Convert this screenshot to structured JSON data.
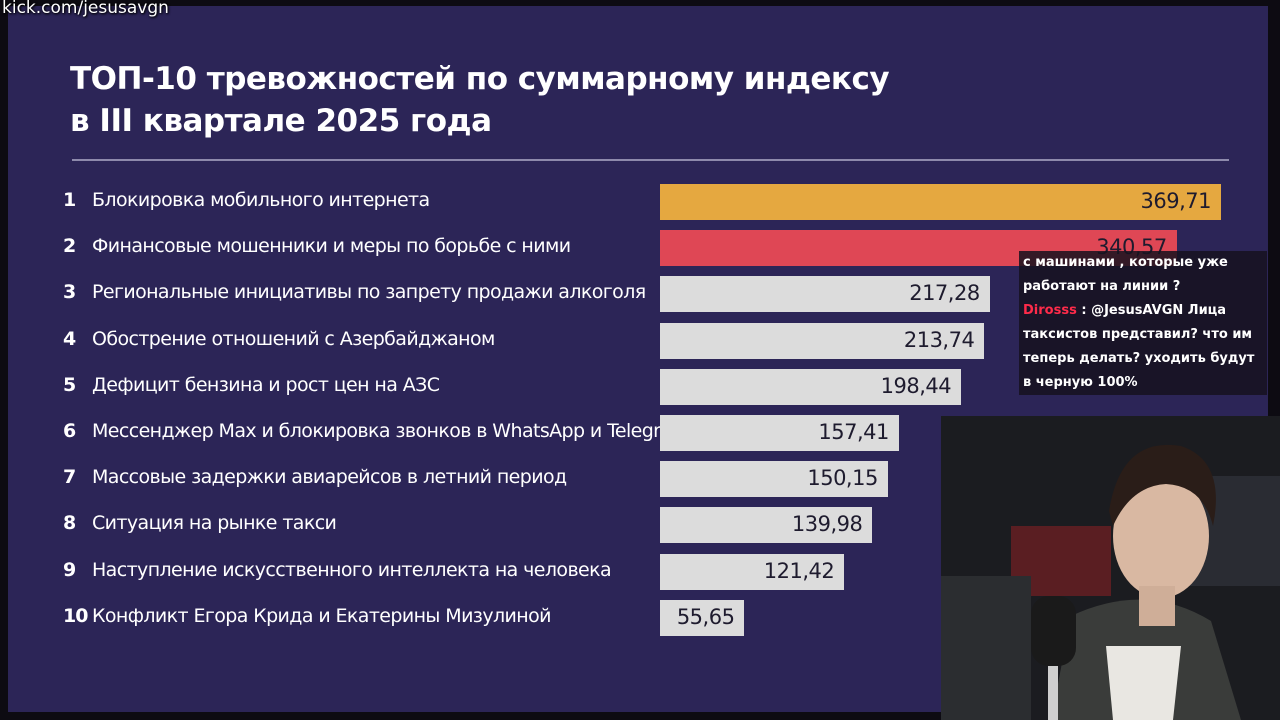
{
  "watermark": "kick.com/jesusavgn",
  "title_line1": "ТОП-10 тревожностей по суммарному индексу",
  "title_line2": "в III квартале 2025 года",
  "colors": {
    "background": "#2c2557",
    "bar_first": "#e5a840",
    "bar_second": "#df4755",
    "bar_default": "#dcdcdc"
  },
  "chart_data": {
    "type": "bar",
    "orientation": "horizontal",
    "title": "ТОП-10 тревожностей по суммарному индексу в III квартале 2025 года",
    "ranks": [
      "1",
      "2",
      "3",
      "4",
      "5",
      "6",
      "7",
      "8",
      "9",
      "10"
    ],
    "categories": [
      "Блокировка мобильного интернета",
      "Финансовые мошенники и меры по борьбе с ними",
      "Региональные инициативы по  запрету продажи алкоголя",
      "Обострение отношений с Азербайджаном",
      "Дефицит бензина и рост цен на АЗС",
      "Мессенджер Max и блокировка звонков в WhatsApp и Telegram",
      "Массовые задержки авиарейсов в летний период",
      "Ситуация на рынке такси",
      "Наступление искусственного интеллекта на человека",
      "Конфликт Егора Крида и Екатерины Мизулиной"
    ],
    "values": [
      369.71,
      340.57,
      217.28,
      213.74,
      198.44,
      157.41,
      150.15,
      139.98,
      121.42,
      55.65
    ],
    "value_labels": [
      "369,71",
      "340,57",
      "217,28",
      "213,74",
      "198,44",
      "157,41",
      "150,15",
      "139,98",
      "121,42",
      "55,65"
    ],
    "xlim": [
      0,
      369.71
    ]
  },
  "chat": {
    "line_prev": "с машинами , которые уже работают на линии ?",
    "user": "Dirosss",
    "message": ": @JesusAVGN Лица таксистов представил? что им теперь делать? уходить будут в черную 100%"
  }
}
